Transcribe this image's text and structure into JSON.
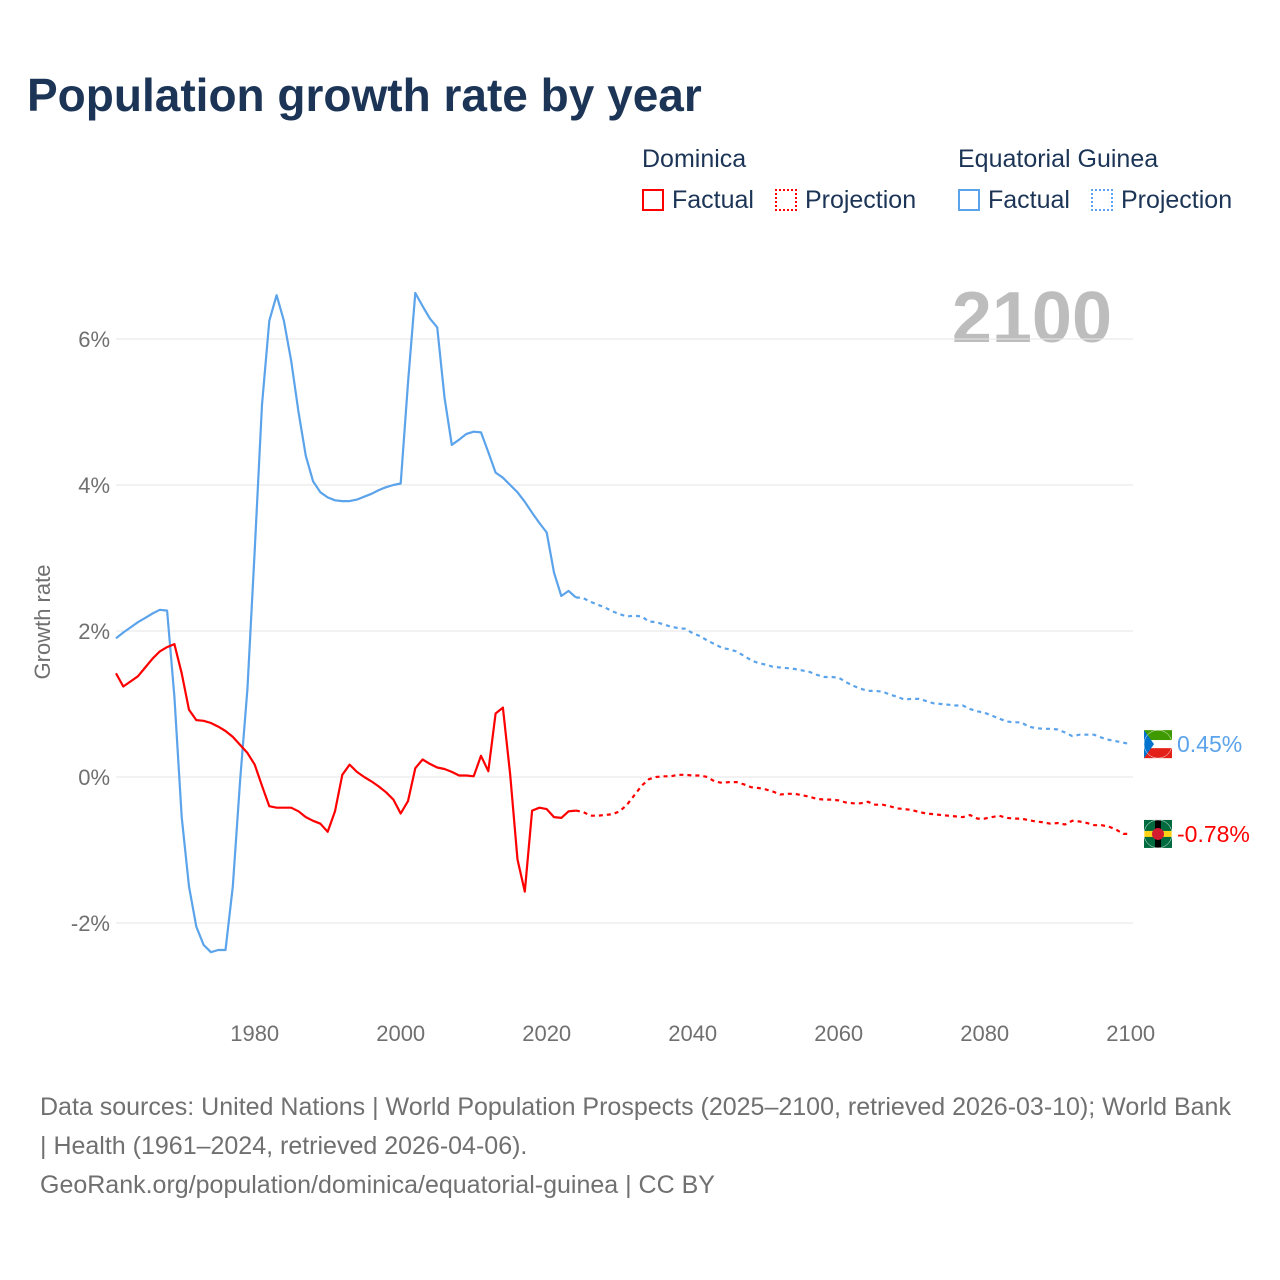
{
  "title": "Population growth rate by year",
  "legend": [
    {
      "country": "Dominica",
      "color": "#ff0000",
      "factual": "Factual",
      "projection": "Projection"
    },
    {
      "country": "Equatorial Guinea",
      "color": "#5ba3ea",
      "factual": "Factual",
      "projection": "Projection"
    }
  ],
  "year_label": "2100",
  "source_line1": "Data sources: United Nations | World Population Prospects (2025–2100, retrieved 2026-03-10); World Bank | Health (1961–2024, retrieved 2026-04-06).",
  "source_line2": "GeoRank.org/population/dominica/equatorial-guinea | CC BY",
  "chart_data": {
    "type": "line",
    "title": "Population growth rate by year",
    "xlabel": "",
    "ylabel": "Growth rate",
    "xlim": [
      1961,
      2100
    ],
    "ylim": [
      -3,
      7.2
    ],
    "xticks": [
      1980,
      2000,
      2020,
      2040,
      2060,
      2080,
      2100
    ],
    "yticks": [
      {
        "v": -2,
        "l": "-2%"
      },
      {
        "v": 0,
        "l": "0%"
      },
      {
        "v": 2,
        "l": "2%"
      },
      {
        "v": 4,
        "l": "4%"
      },
      {
        "v": 6,
        "l": "6%"
      }
    ],
    "series": [
      {
        "name": "Equatorial Guinea",
        "color": "#5ba3ea",
        "end_label": "0.45%",
        "factual_start": 1961,
        "factual": [
          1.9,
          1.98,
          2.05,
          2.12,
          2.18,
          2.24,
          2.29,
          2.28,
          1.1,
          -0.55,
          -1.5,
          -2.05,
          -2.3,
          -2.4,
          -2.37,
          -2.37,
          -1.5,
          -0.05,
          1.2,
          3.1,
          5.1,
          6.25,
          6.6,
          6.25,
          5.7,
          5.0,
          4.4,
          4.05,
          3.9,
          3.83,
          3.79,
          3.78,
          3.78,
          3.8,
          3.84,
          3.88,
          3.93,
          3.97,
          4.0,
          4.02,
          5.4,
          6.63,
          6.45,
          6.28,
          6.16,
          5.2,
          4.55,
          4.62,
          4.7,
          4.73,
          4.72,
          4.45,
          4.17,
          4.1,
          4.0,
          3.9,
          3.77,
          3.62,
          3.48,
          3.35,
          2.8,
          2.48,
          2.55,
          2.46
        ],
        "projection_start": 2024,
        "projection": [
          2.46,
          2.45,
          2.4,
          2.36,
          2.32,
          2.27,
          2.23,
          2.2,
          2.21,
          2.2,
          2.13,
          2.12,
          2.09,
          2.06,
          2.04,
          2.03,
          1.97,
          1.93,
          1.87,
          1.82,
          1.77,
          1.75,
          1.72,
          1.66,
          1.6,
          1.56,
          1.54,
          1.51,
          1.5,
          1.49,
          1.48,
          1.46,
          1.44,
          1.4,
          1.37,
          1.37,
          1.36,
          1.3,
          1.25,
          1.21,
          1.18,
          1.18,
          1.17,
          1.13,
          1.1,
          1.06,
          1.07,
          1.07,
          1.04,
          1.01,
          1.0,
          0.99,
          0.98,
          0.98,
          0.93,
          0.9,
          0.88,
          0.84,
          0.8,
          0.76,
          0.75,
          0.75,
          0.69,
          0.67,
          0.66,
          0.66,
          0.65,
          0.61,
          0.56,
          0.58,
          0.58,
          0.58,
          0.54,
          0.51,
          0.49,
          0.47,
          0.45
        ]
      },
      {
        "name": "Dominica",
        "color": "#ff0000",
        "end_label": "-0.78%",
        "factual_start": 1961,
        "factual": [
          1.42,
          1.24,
          1.31,
          1.38,
          1.5,
          1.62,
          1.72,
          1.78,
          1.82,
          1.42,
          0.92,
          0.78,
          0.77,
          0.74,
          0.69,
          0.63,
          0.55,
          0.44,
          0.33,
          0.17,
          -0.12,
          -0.4,
          -0.42,
          -0.42,
          -0.42,
          -0.47,
          -0.55,
          -0.6,
          -0.64,
          -0.75,
          -0.47,
          0.03,
          0.17,
          0.07,
          0.0,
          -0.06,
          -0.13,
          -0.21,
          -0.31,
          -0.5,
          -0.33,
          0.12,
          0.24,
          0.18,
          0.13,
          0.11,
          0.07,
          0.02,
          0.02,
          0.01,
          0.29,
          0.08,
          0.87,
          0.95,
          0.03,
          -1.13,
          -1.57,
          -0.46,
          -0.42,
          -0.44,
          -0.55,
          -0.56,
          -0.47,
          -0.46
        ],
        "projection_start": 2024,
        "projection": [
          -0.46,
          -0.48,
          -0.53,
          -0.53,
          -0.52,
          -0.51,
          -0.47,
          -0.38,
          -0.25,
          -0.12,
          -0.03,
          0.0,
          0.01,
          0.01,
          0.03,
          0.03,
          0.02,
          0.02,
          0.0,
          -0.06,
          -0.08,
          -0.07,
          -0.07,
          -0.1,
          -0.14,
          -0.15,
          -0.17,
          -0.2,
          -0.24,
          -0.23,
          -0.23,
          -0.25,
          -0.27,
          -0.3,
          -0.31,
          -0.31,
          -0.32,
          -0.35,
          -0.36,
          -0.36,
          -0.34,
          -0.38,
          -0.38,
          -0.4,
          -0.43,
          -0.44,
          -0.45,
          -0.48,
          -0.5,
          -0.51,
          -0.52,
          -0.53,
          -0.54,
          -0.55,
          -0.52,
          -0.57,
          -0.57,
          -0.55,
          -0.53,
          -0.56,
          -0.57,
          -0.57,
          -0.59,
          -0.61,
          -0.62,
          -0.64,
          -0.63,
          -0.65,
          -0.6,
          -0.61,
          -0.63,
          -0.66,
          -0.66,
          -0.68,
          -0.72,
          -0.78,
          -0.78
        ]
      }
    ]
  }
}
